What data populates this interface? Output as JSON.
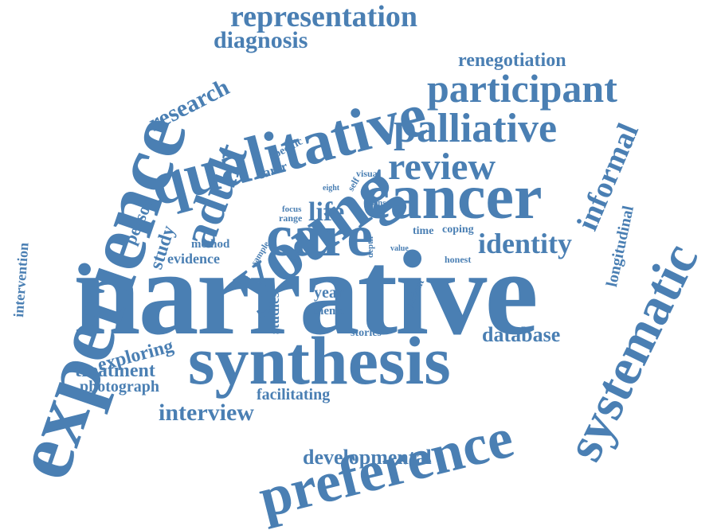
{
  "cloud": {
    "color": "#4a7fb3",
    "words": [
      "narrative",
      "experience",
      "synthesis",
      "cancer",
      "care",
      "young",
      "qualitative",
      "preference",
      "systematic",
      "participant",
      "palliative",
      "adult",
      "review",
      "representation",
      "diagnosis",
      "identity",
      "informal",
      "research",
      "life",
      "renegotiation",
      "developmental",
      "interview",
      "exploring",
      "treatment",
      "photograph",
      "database",
      "facilitating",
      "longitudinal",
      "intervention",
      "person",
      "study",
      "evidence",
      "method",
      "year",
      "theme",
      "studies",
      "stories",
      "patient",
      "specific",
      "carer",
      "eight",
      "self",
      "visual",
      "sense",
      "focus",
      "range",
      "sample",
      "case",
      "time",
      "coping",
      "depth",
      "value",
      "honest"
    ]
  }
}
